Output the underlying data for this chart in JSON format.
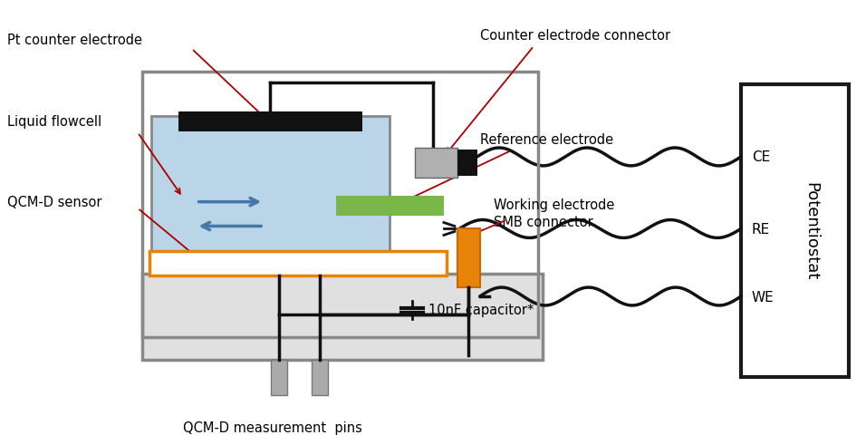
{
  "bg_color": "#ffffff",
  "colors": {
    "gray_box": "#888888",
    "gray_box_dark": "#666666",
    "light_blue": "#bad4e8",
    "black_bar": "#111111",
    "orange": "#e8830a",
    "green": "#7ab648",
    "potentiostat_box": "#1a1a1a",
    "arrow_red": "#aa0000",
    "blue_arrow": "#4477aa",
    "wire": "#111111",
    "light_gray_fill": "#e0e0e0",
    "connector_gray": "#b0b0b0"
  },
  "labels": {
    "pt_counter": "Pt counter electrode",
    "liquid_flowcell": "Liquid flowcell",
    "qcm_sensor": "QCM-D sensor",
    "counter_connector": "Counter electrode connector",
    "reference_electrode": "Reference electrode",
    "working_smb_line1": "Working electrode",
    "working_smb_line2": "SMB connector",
    "capacitor": "10nF capacitor*",
    "measurement_pins": "QCM-D measurement  pins",
    "CE": "CE",
    "RE": "RE",
    "WE": "WE",
    "potentiostat": "Potentiostat"
  }
}
